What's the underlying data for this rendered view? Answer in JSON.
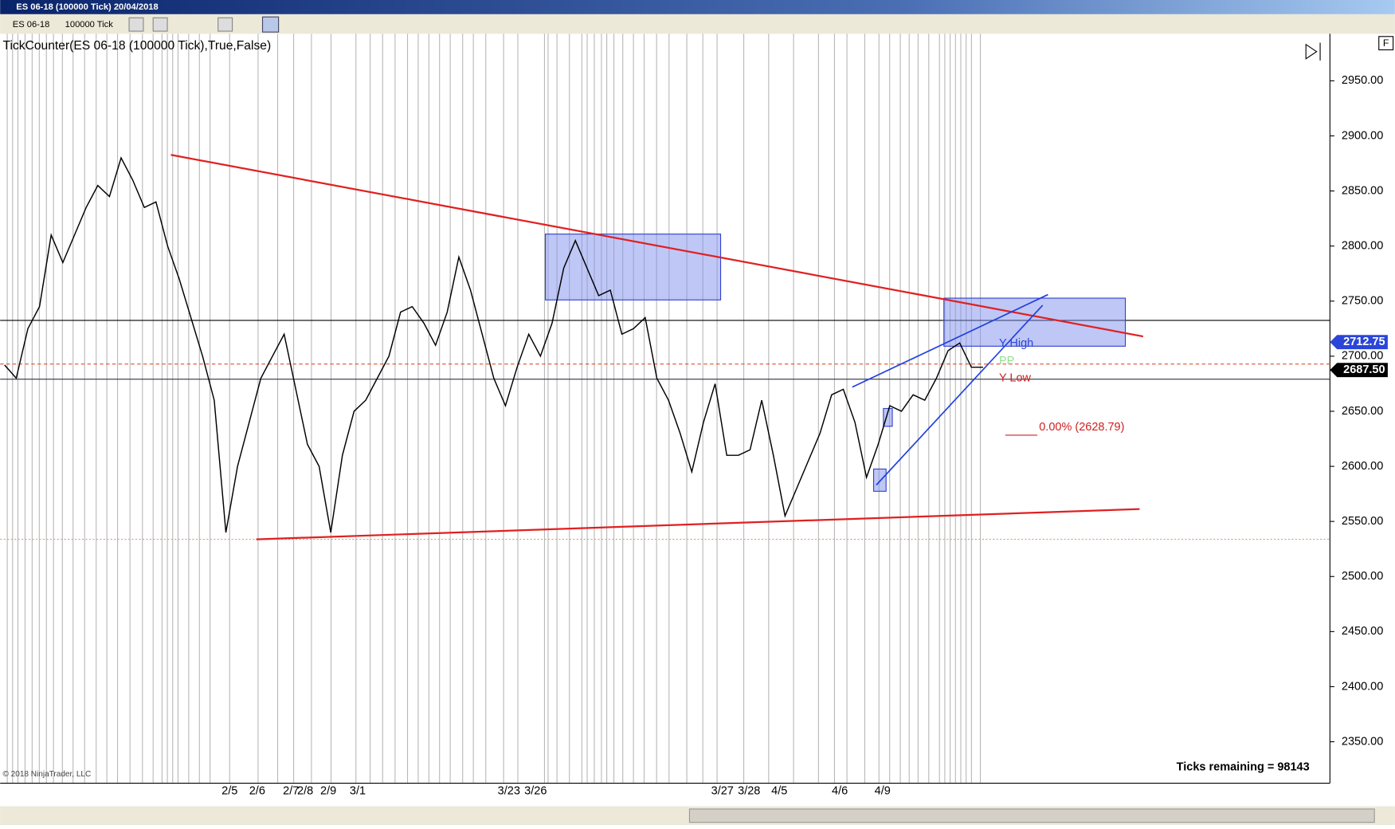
{
  "window": {
    "title": "ES 06-18 (100000 Tick)  20/04/2018"
  },
  "toolbar": {
    "instrument": "ES 06-18",
    "interval": "100000 Tick",
    "button": "F"
  },
  "chart_data": {
    "type": "line",
    "title": "TickCounter(ES 06-18 (100000 Tick),True,False)",
    "color": "#000000",
    "values": [
      2692,
      2680,
      2725,
      2745,
      2810,
      2785,
      2810,
      2835,
      2855,
      2845,
      2880,
      2860,
      2835,
      2840,
      2800,
      2770,
      2735,
      2700,
      2660,
      2540,
      2600,
      2640,
      2680,
      2700,
      2720,
      2670,
      2620,
      2600,
      2540,
      2610,
      2650,
      2660,
      2680,
      2700,
      2740,
      2745,
      2730,
      2710,
      2740,
      2790,
      2760,
      2720,
      2680,
      2655,
      2690,
      2720,
      2700,
      2730,
      2780,
      2805,
      2780,
      2755,
      2760,
      2720,
      2725,
      2735,
      2680,
      2660,
      2630,
      2595,
      2640,
      2675,
      2610,
      2610,
      2615,
      2660,
      2610,
      2555,
      2580,
      2605,
      2630,
      2665,
      2670,
      2640,
      2590,
      2620,
      2655,
      2650,
      2665,
      2660,
      2680,
      2705,
      2712,
      2690,
      2690
    ],
    "ylim": [
      2314,
      2987
    ],
    "yticks": [
      {
        "value": 2350,
        "label": "2350.00"
      },
      {
        "value": 2400,
        "label": "2400.00"
      },
      {
        "value": 2450,
        "label": "2450.00"
      },
      {
        "value": 2500,
        "label": "2500.00"
      },
      {
        "value": 2550,
        "label": "2550.00"
      },
      {
        "value": 2600,
        "label": "2600.00"
      },
      {
        "value": 2650,
        "label": "2650.00"
      },
      {
        "value": 2700,
        "label": "2700.00"
      },
      {
        "value": 2750,
        "label": "2750.00"
      },
      {
        "value": 2800,
        "label": "2800.00"
      },
      {
        "value": 2850,
        "label": "2850.00"
      },
      {
        "value": 2900,
        "label": "2900.00"
      },
      {
        "value": 2950,
        "label": "2950.00"
      }
    ],
    "x_axis_labels": [
      "2/5",
      "2/6",
      "2/7",
      "2/8",
      "2/9",
      "3/1",
      "3/23",
      "3/26",
      "3/27",
      "3/28",
      "4/5",
      "4/6",
      "4/9"
    ],
    "price_markers": [
      {
        "value": 2712.75,
        "label": "2712.75",
        "color": "#2a45d8"
      },
      {
        "value": 2687.5,
        "label": "2687.50",
        "color": "#000000"
      }
    ],
    "annotations": {
      "y_high": "Y High",
      "pp": "PP",
      "y_low": "Y Low",
      "fib": "0.00% (2628.79)"
    },
    "ticks_remaining": "Ticks remaining = 98143",
    "copyright": "© 2018 NinjaTrader, LLC"
  }
}
